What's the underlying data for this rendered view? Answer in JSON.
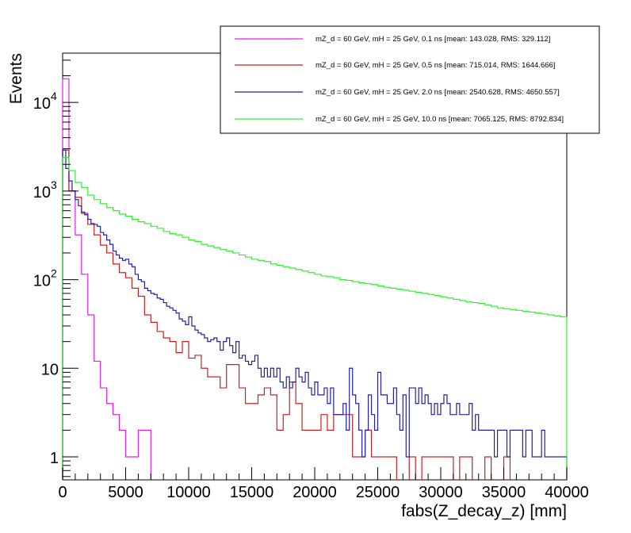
{
  "chart_data": {
    "type": "histogram",
    "xlabel": "fabs(Z_decay_z) [mm]",
    "ylabel": "Events",
    "xlim": [
      0,
      40000
    ],
    "ylim": [
      0.55,
      36000
    ],
    "yscale": "log",
    "bin_width": 500,
    "grid": false,
    "legend_position": "top-right",
    "x_ticks": [
      "0",
      "5000",
      "10000",
      "15000",
      "20000",
      "25000",
      "30000",
      "35000",
      "40000"
    ],
    "y_ticks": [
      {
        "value": 1,
        "label": "1"
      },
      {
        "value": 10,
        "label": "10"
      },
      {
        "value": 100,
        "label": "10",
        "exp": "2"
      },
      {
        "value": 1000,
        "label": "10",
        "exp": "3"
      },
      {
        "value": 10000,
        "label": "10",
        "exp": "4"
      }
    ],
    "series": [
      {
        "name": "mZ_d = 60 GeV, mH = 25 GeV, 0.1 ns [mean: 143.028, RMS: 329.112]",
        "color": "#e020e0",
        "values": [
          18500,
          1000,
          320,
          115,
          40,
          12,
          6,
          4,
          3,
          2,
          1,
          1,
          2,
          2,
          0,
          0,
          0,
          0,
          0,
          0,
          0,
          0,
          0,
          0,
          0,
          0,
          0,
          0,
          0,
          0,
          0,
          0,
          0,
          0,
          0,
          0,
          0,
          0,
          0,
          0,
          0,
          0,
          0,
          0,
          0,
          0,
          0,
          0,
          0,
          0,
          0,
          0,
          0,
          0,
          0,
          0,
          0,
          0,
          0,
          0,
          0,
          0,
          0,
          0,
          0,
          0,
          0,
          0,
          0,
          0,
          0,
          0,
          0,
          0,
          0,
          0,
          0,
          0,
          0,
          0
        ]
      },
      {
        "name": "mZ_d = 60 GeV, mH = 25 GeV, 0.5 ns [mean: 715.014, RMS: 1644.666]",
        "color": "#cc2020",
        "values": [
          2900,
          1000,
          850,
          560,
          420,
          320,
          245,
          200,
          150,
          120,
          105,
          80,
          65,
          40,
          33,
          26,
          22,
          20,
          15,
          20,
          13,
          14,
          10,
          8,
          8,
          6,
          11,
          11,
          6,
          4,
          4,
          5,
          6,
          5,
          2,
          3,
          7,
          4,
          2,
          2,
          2,
          3,
          2,
          3,
          3,
          3,
          1,
          1,
          2,
          1,
          1,
          1,
          1,
          0,
          0,
          1,
          0,
          1,
          1,
          1,
          1,
          1,
          0,
          1,
          1,
          0,
          0,
          1,
          0,
          0,
          1,
          0,
          0,
          0,
          0,
          0,
          0,
          0,
          0,
          0
        ]
      },
      {
        "name": "mZ_d = 60 GeV, mH = 25 GeV, 2.0 ns [mean: 2540.628, RMS: 4650.557]",
        "color": "#2020a0",
        "values": [
          2900,
          1800,
          1300,
          1000,
          800,
          680,
          580,
          540,
          480,
          430,
          420,
          400,
          340,
          320,
          280,
          250,
          210,
          190,
          175,
          165,
          170,
          150,
          140,
          115,
          100,
          95,
          80,
          75,
          70,
          68,
          62,
          60,
          55,
          50,
          48,
          45,
          42,
          36,
          34,
          31,
          38,
          30,
          27,
          25,
          24,
          22,
          20,
          21,
          22,
          20,
          16,
          20,
          22,
          18,
          15,
          20,
          13,
          14,
          12,
          11,
          12,
          14,
          10,
          8,
          10,
          8,
          10,
          8,
          10,
          7,
          6,
          8,
          6,
          7,
          10,
          8,
          7,
          9,
          6,
          5,
          7,
          5,
          5,
          6,
          4,
          6,
          3,
          3,
          3,
          4,
          2,
          10,
          5,
          4,
          2,
          1,
          2,
          5,
          3,
          2,
          9,
          5,
          5,
          4,
          4,
          6,
          3,
          2,
          5,
          1,
          6,
          6,
          4,
          6,
          4,
          5,
          4,
          3,
          4,
          3,
          4,
          5,
          4,
          3,
          3,
          4,
          3,
          3,
          3,
          4,
          2,
          3,
          2,
          2,
          2,
          2,
          2,
          1,
          2,
          2,
          2,
          1,
          2,
          2,
          2,
          2,
          1,
          2,
          2,
          1,
          1,
          1,
          2,
          1,
          1,
          1,
          1,
          1,
          1,
          1
        ]
      },
      {
        "name": "mZ_d = 60 GeV, mH = 25 GeV, 10.0 ns [mean: 7065.125, RMS: 8792.834]",
        "color": "#30f030",
        "values": [
          2400,
          1700,
          1250,
          1100,
          900,
          800,
          720,
          650,
          600,
          550,
          520,
          480,
          450,
          430,
          400,
          380,
          350,
          330,
          320,
          300,
          280,
          270,
          250,
          240,
          230,
          220,
          210,
          200,
          190,
          180,
          170,
          165,
          160,
          150,
          145,
          140,
          135,
          130,
          125,
          120,
          115,
          110,
          108,
          105,
          100,
          98,
          95,
          92,
          90,
          88,
          85,
          82,
          80,
          78,
          76,
          74,
          72,
          70,
          68,
          66,
          64,
          62,
          60,
          58,
          56,
          55,
          54,
          52,
          50,
          48,
          47,
          46,
          45,
          44,
          43,
          42,
          41,
          40,
          39,
          38
        ]
      }
    ]
  }
}
